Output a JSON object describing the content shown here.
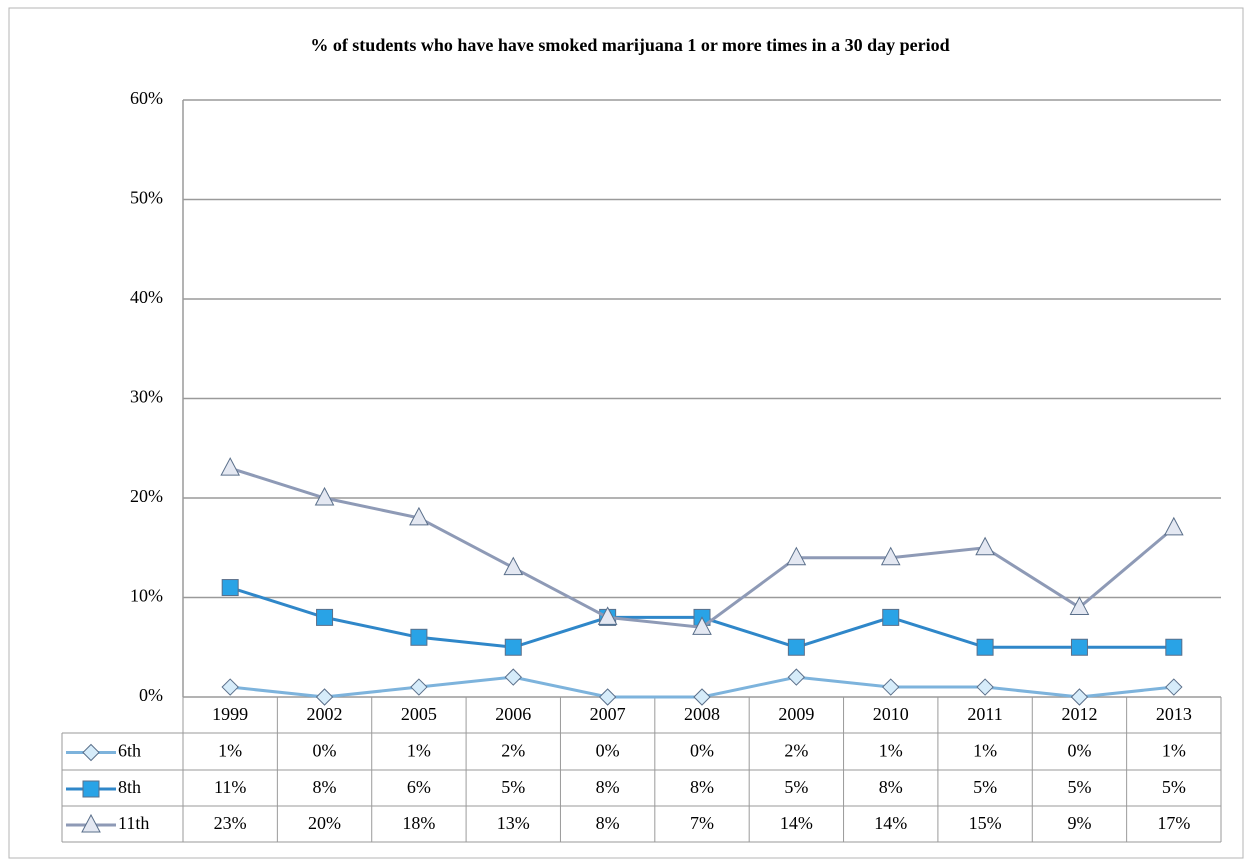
{
  "chart_data": {
    "type": "line",
    "title": "% of students who have have smoked marijuana 1 or more times in a 30 day period",
    "categories": [
      "1999",
      "2002",
      "2005",
      "2006",
      "2007",
      "2008",
      "2009",
      "2010",
      "2011",
      "2012",
      "2013"
    ],
    "series": [
      {
        "name": "6th",
        "color": "#7db3dc",
        "marker": "diamond",
        "values": [
          1,
          0,
          1,
          2,
          0,
          0,
          2,
          1,
          1,
          0,
          1
        ],
        "value_labels": [
          "1%",
          "0%",
          "1%",
          "2%",
          "0%",
          "0%",
          "2%",
          "1%",
          "1%",
          "0%",
          "1%"
        ]
      },
      {
        "name": "8th",
        "color": "#2f87c9",
        "marker": "square",
        "values": [
          11,
          8,
          6,
          5,
          8,
          8,
          5,
          8,
          5,
          5,
          5
        ],
        "value_labels": [
          "11%",
          "8%",
          "6%",
          "5%",
          "8%",
          "8%",
          "5%",
          "8%",
          "5%",
          "5%",
          "5%"
        ]
      },
      {
        "name": "11th",
        "color": "#8e9ab6",
        "marker": "triangle",
        "values": [
          23,
          20,
          18,
          13,
          8,
          7,
          14,
          14,
          15,
          9,
          17
        ],
        "value_labels": [
          "23%",
          "20%",
          "18%",
          "13%",
          "8%",
          "7%",
          "14%",
          "14%",
          "15%",
          "9%",
          "17%"
        ]
      }
    ],
    "ylim": [
      0,
      60
    ],
    "yticks": [
      {
        "value": 0,
        "label": "0%"
      },
      {
        "value": 10,
        "label": "10%"
      },
      {
        "value": 20,
        "label": "20%"
      },
      {
        "value": 30,
        "label": "30%"
      },
      {
        "value": 40,
        "label": "40%"
      },
      {
        "value": 50,
        "label": "50%"
      },
      {
        "value": 60,
        "label": "60%"
      }
    ],
    "grid": true
  }
}
